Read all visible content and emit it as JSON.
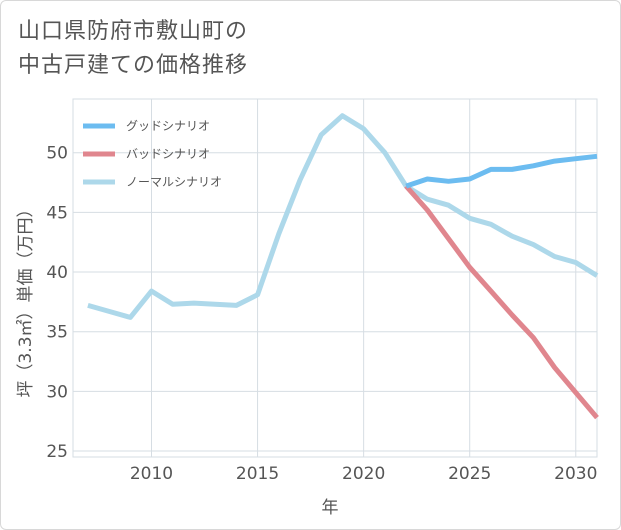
{
  "title": "山口県防府市敷山町の\n中古戸建ての価格推移",
  "chart_data": {
    "type": "line",
    "title": "山口県防府市敷山町の\n中古戸建ての価格推移",
    "xlabel": "年",
    "ylabel": "坪（3.3㎡）単価（万円）",
    "xlim": [
      2006.3,
      2031
    ],
    "ylim": [
      24.5,
      54.5
    ],
    "xticks": [
      2010,
      2015,
      2020,
      2025,
      2030
    ],
    "yticks": [
      25,
      30,
      35,
      40,
      45,
      50
    ],
    "grid": true,
    "legend_position": "top-left",
    "series": [
      {
        "name": "グッドシナリオ",
        "color": "#6cbcf0",
        "x": [
          2022,
          2023,
          2024,
          2025,
          2026,
          2027,
          2028,
          2029,
          2030,
          2031
        ],
        "y": [
          47.2,
          47.8,
          47.6,
          47.8,
          48.6,
          48.6,
          48.9,
          49.3,
          49.5,
          49.7
        ]
      },
      {
        "name": "バッドシナリオ",
        "color": "#e0868e",
        "x": [
          2022,
          2023,
          2024,
          2025,
          2026,
          2027,
          2028,
          2029,
          2030,
          2031
        ],
        "y": [
          47.2,
          45.2,
          42.8,
          40.4,
          38.4,
          36.4,
          34.5,
          32.0,
          29.9,
          27.8
        ]
      },
      {
        "name": "ノーマルシナリオ",
        "color": "#add8ea",
        "x": [
          2007,
          2008,
          2009,
          2010,
          2011,
          2012,
          2013,
          2014,
          2015,
          2016,
          2017,
          2018,
          2019,
          2020,
          2021,
          2022,
          2023,
          2024,
          2025,
          2026,
          2027,
          2028,
          2029,
          2030,
          2031
        ],
        "y": [
          37.2,
          36.7,
          36.2,
          38.4,
          37.3,
          37.4,
          37.3,
          37.2,
          38.1,
          43.2,
          47.7,
          51.5,
          53.1,
          52.0,
          50.0,
          47.2,
          46.1,
          45.6,
          44.5,
          44.0,
          43.0,
          42.3,
          41.3,
          40.8,
          39.7
        ]
      }
    ]
  }
}
